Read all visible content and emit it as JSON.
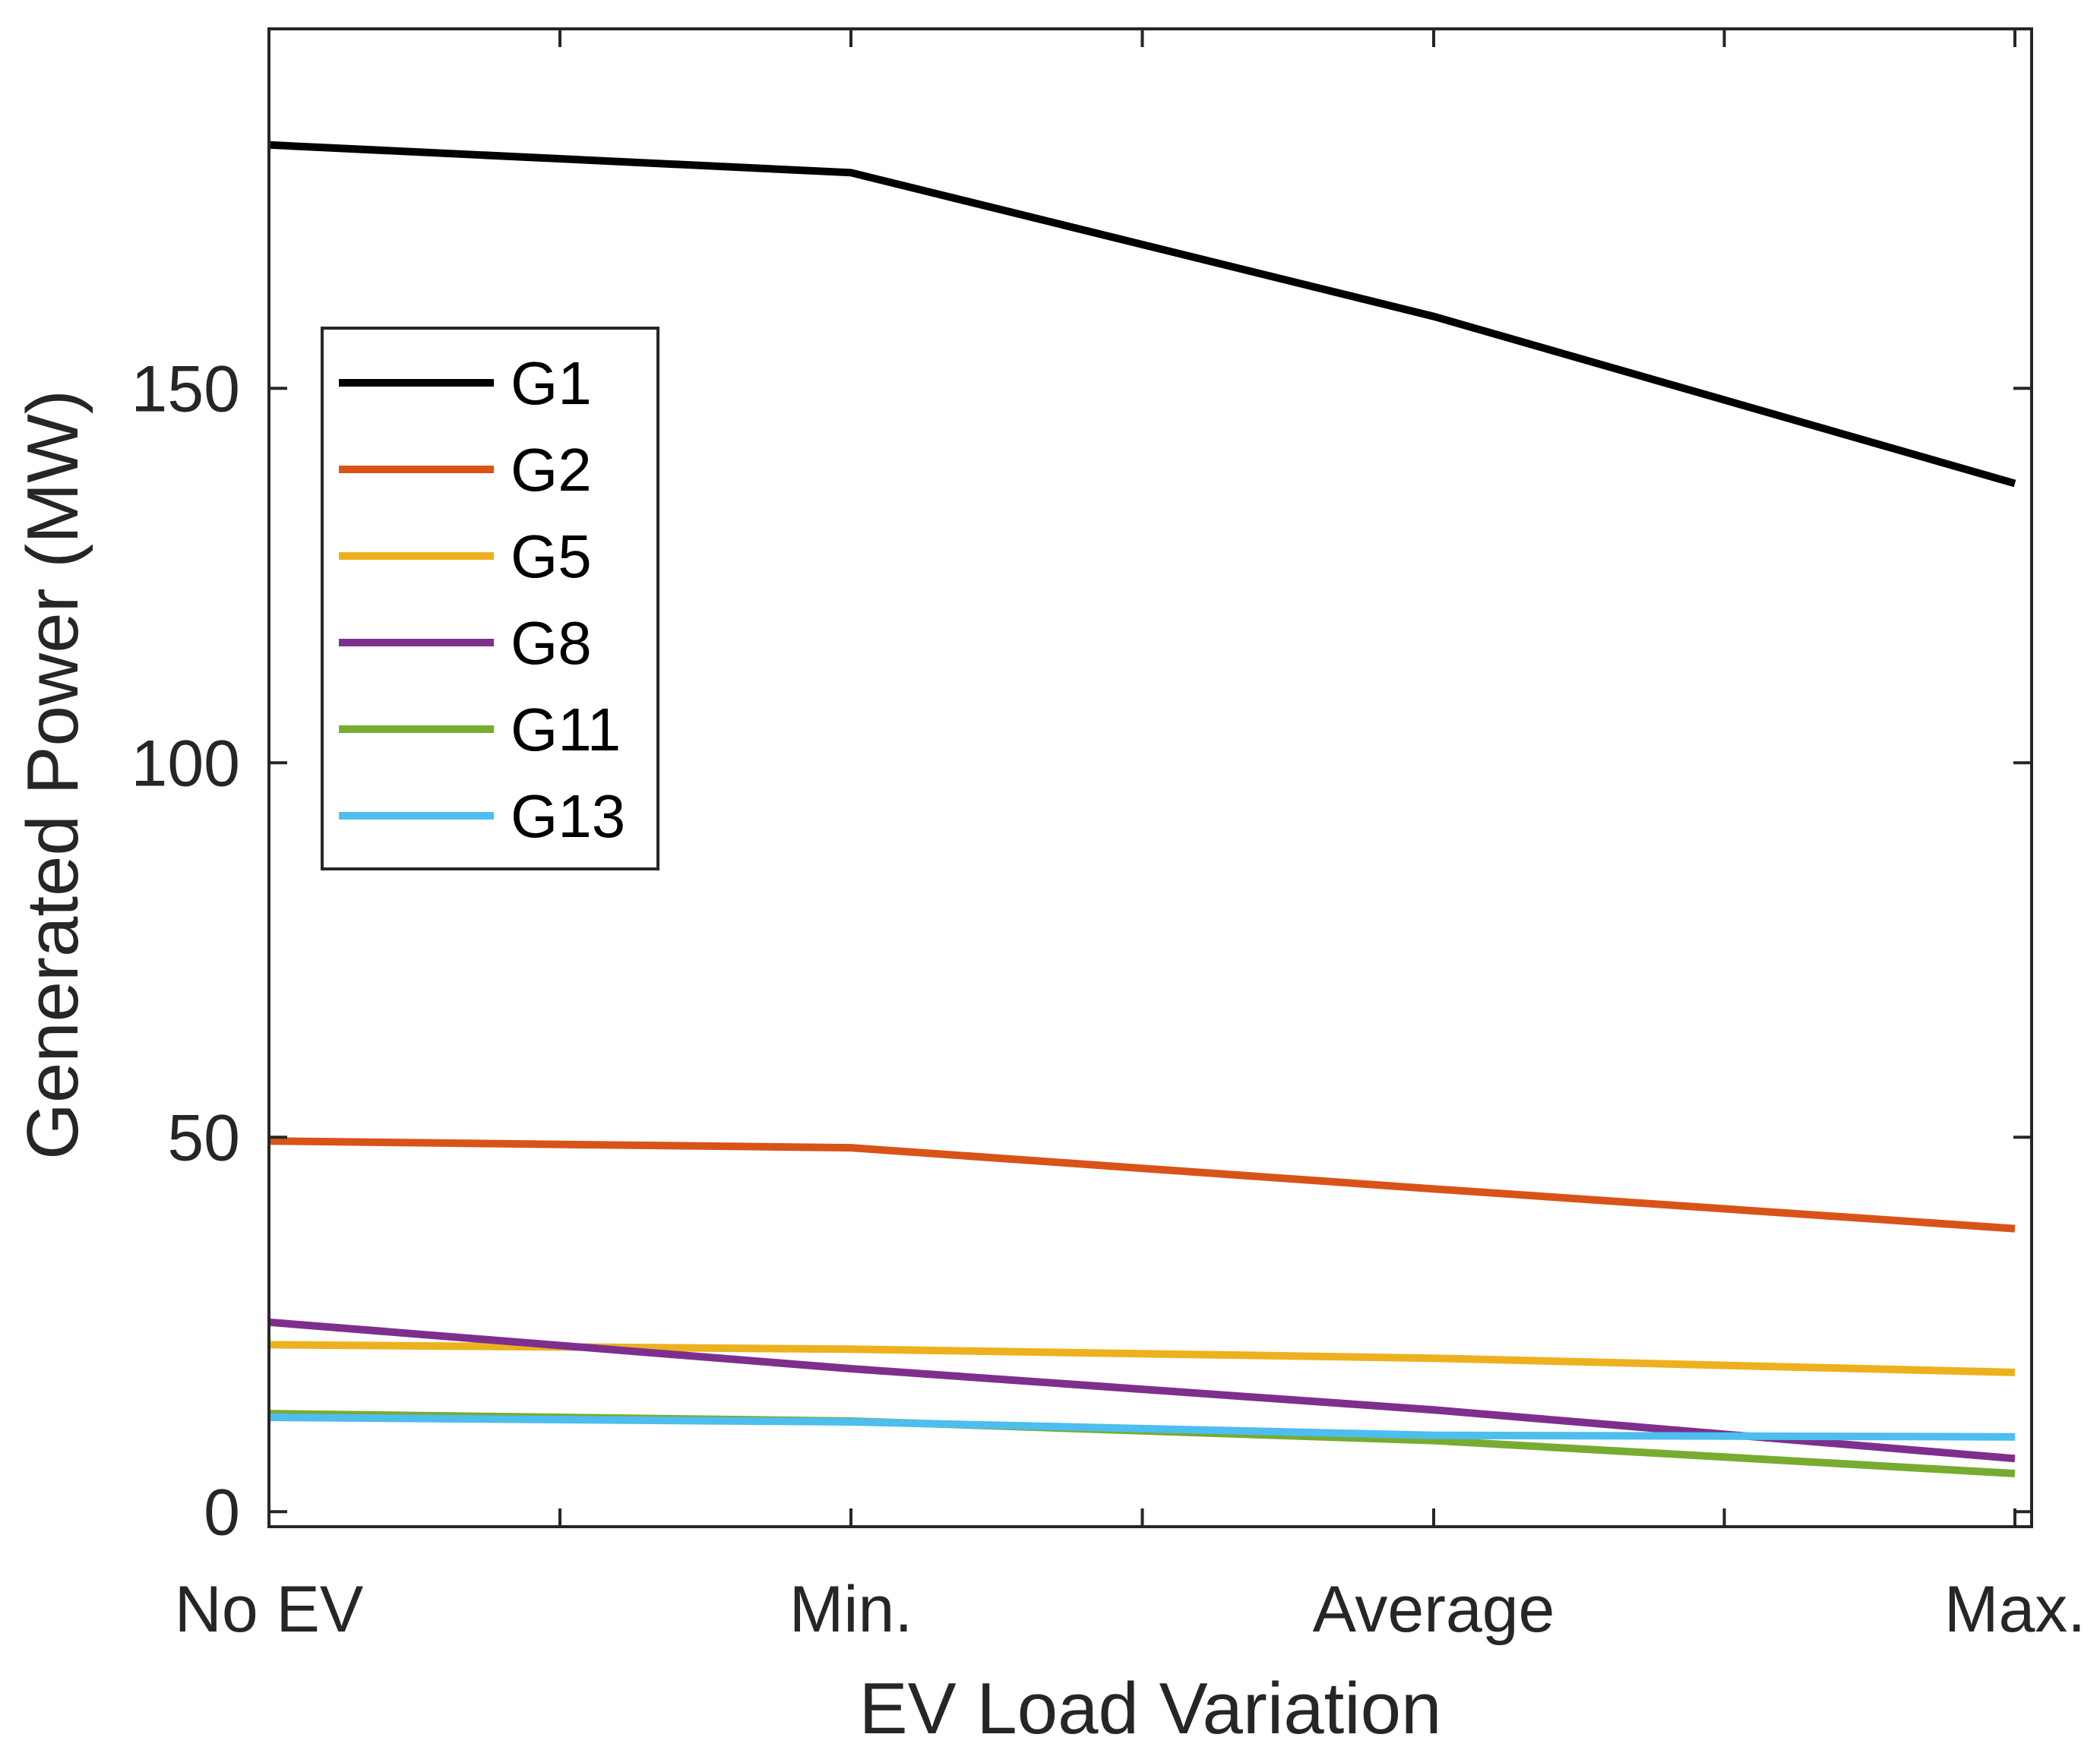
{
  "chart_data": {
    "type": "line",
    "title": "",
    "xlabel": "EV Load Variation",
    "ylabel": "Generated Power (MW)",
    "categories": [
      "No EV",
      "Min.",
      "Average",
      "Max."
    ],
    "ylim": [
      -2,
      198
    ],
    "yticks": [
      0,
      50,
      100,
      150
    ],
    "legend_position": "upper-left",
    "grid": false,
    "series": [
      {
        "name": "G1",
        "color": "#000000",
        "values": [
          182.5,
          178.8,
          159.6,
          137.3
        ]
      },
      {
        "name": "G2",
        "color": "#D95319",
        "values": [
          49.5,
          48.6,
          43.1,
          37.8
        ]
      },
      {
        "name": "G5",
        "color": "#EDB120",
        "values": [
          22.3,
          21.7,
          20.5,
          18.6
        ]
      },
      {
        "name": "G8",
        "color": "#7E2F8E",
        "values": [
          25.3,
          19.1,
          13.6,
          7.1
        ]
      },
      {
        "name": "G11",
        "color": "#77AC30",
        "values": [
          13.1,
          12.1,
          9.5,
          5.1
        ]
      },
      {
        "name": "G13",
        "color": "#4DBEEE",
        "values": [
          12.6,
          12.0,
          10.2,
          10.0
        ]
      }
    ]
  }
}
